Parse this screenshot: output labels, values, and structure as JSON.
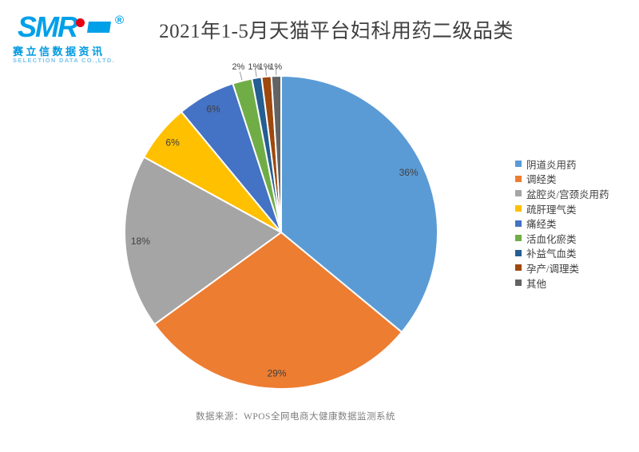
{
  "logo": {
    "brand": "SMR",
    "registered": "®",
    "company_cn": "赛立信数据资讯",
    "company_en": "SELECTION DATA CO.,LTD.",
    "brand_color": "#00A0E9",
    "dot_color": "#E60012"
  },
  "header": {
    "title": "2021年1-5月天猫平台妇科用药二级品类"
  },
  "footer": {
    "source": "数据来源：WPOS全网电商大健康数据监测系统"
  },
  "chart_data": {
    "type": "pie",
    "title": "2021年1-5月天猫平台妇科用药二级品类",
    "unit": "%",
    "legend_position": "right",
    "start_angle_deg": 0,
    "direction": "clockwise",
    "slices": [
      {
        "label": "阴道炎用药",
        "value": 36,
        "label_text": "36%",
        "color": "#5B9BD5",
        "label_position": "inside"
      },
      {
        "label": "调经类",
        "value": 29,
        "label_text": "29%",
        "color": "#ED7D31",
        "label_position": "inside"
      },
      {
        "label": "盆腔炎/宫颈炎用药",
        "value": 18,
        "label_text": "18%",
        "color": "#A5A5A5",
        "label_position": "inside"
      },
      {
        "label": "疏肝理气类",
        "value": 6,
        "label_text": "6%",
        "color": "#FFC000",
        "label_position": "inside"
      },
      {
        "label": "痛经类",
        "value": 6,
        "label_text": "6%",
        "color": "#4472C4",
        "label_position": "inside"
      },
      {
        "label": "活血化瘀类",
        "value": 2,
        "label_text": "2%",
        "color": "#70AD47",
        "label_position": "outside"
      },
      {
        "label": "补益气血类",
        "value": 1,
        "label_text": "1%",
        "color": "#255E91",
        "label_position": "outside"
      },
      {
        "label": "孕产/调理类",
        "value": 1,
        "label_text": "1%",
        "color": "#9E480E",
        "label_position": "outside"
      },
      {
        "label": "其他",
        "value": 1,
        "label_text": "1%",
        "color": "#636363",
        "label_position": "outside"
      }
    ]
  }
}
